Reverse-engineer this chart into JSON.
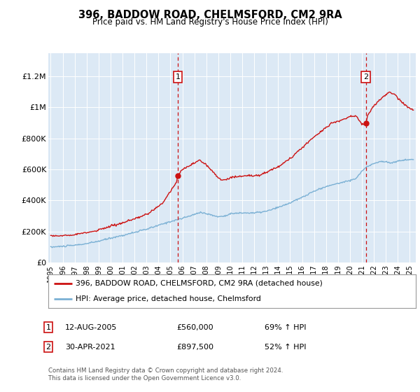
{
  "title1": "396, BADDOW ROAD, CHELMSFORD, CM2 9RA",
  "title2": "Price paid vs. HM Land Registry's House Price Index (HPI)",
  "bg_color": "#dce9f5",
  "ylabel_ticks": [
    "£0",
    "£200K",
    "£400K",
    "£600K",
    "£800K",
    "£1M",
    "£1.2M"
  ],
  "ytick_values": [
    0,
    200000,
    400000,
    600000,
    800000,
    1000000,
    1200000
  ],
  "ylim": [
    0,
    1350000
  ],
  "xlim_start": 1994.8,
  "xlim_end": 2025.5,
  "xtick_years": [
    1995,
    1996,
    1997,
    1998,
    1999,
    2000,
    2001,
    2002,
    2003,
    2004,
    2005,
    2006,
    2007,
    2008,
    2009,
    2010,
    2011,
    2012,
    2013,
    2014,
    2015,
    2016,
    2017,
    2018,
    2019,
    2020,
    2021,
    2022,
    2023,
    2024,
    2025
  ],
  "hpi_color": "#7ab0d4",
  "price_color": "#cc1111",
  "marker1_year": 2005.62,
  "marker1_value": 560000,
  "marker2_year": 2021.33,
  "marker2_value": 897500,
  "legend_line1": "396, BADDOW ROAD, CHELMSFORD, CM2 9RA (detached house)",
  "legend_line2": "HPI: Average price, detached house, Chelmsford",
  "table_row1": [
    "1",
    "12-AUG-2005",
    "£560,000",
    "69% ↑ HPI"
  ],
  "table_row2": [
    "2",
    "30-APR-2021",
    "£897,500",
    "52% ↑ HPI"
  ],
  "footer": "Contains HM Land Registry data © Crown copyright and database right 2024.\nThis data is licensed under the Open Government Licence v3.0."
}
